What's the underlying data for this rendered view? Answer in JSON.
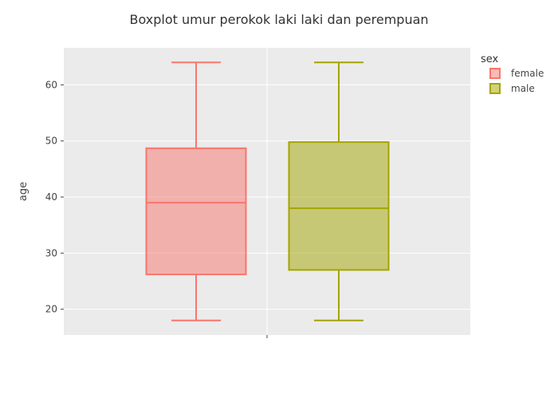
{
  "chart_data": {
    "type": "box",
    "title": "Boxplot umur perokok laki laki dan perempuan",
    "xlabel": "",
    "ylabel": "age",
    "ylim": [
      15.4,
      66.6
    ],
    "yticks": [
      20,
      30,
      40,
      50,
      60
    ],
    "grid": true,
    "legend": {
      "title": "sex",
      "placement": "top-right"
    },
    "series": [
      {
        "name": "female",
        "min": 18,
        "q1": 26.2,
        "median": 39,
        "q3": 48.7,
        "max": 64,
        "stroke": "#F8766D",
        "fill": "#F8766D"
      },
      {
        "name": "male",
        "min": 18,
        "q1": 27,
        "median": 38,
        "q3": 49.8,
        "max": 64,
        "stroke": "#A3A500",
        "fill": "#A3A500"
      }
    ],
    "colors": {
      "plot_bg": "#EBEBEB",
      "grid": "#FFFFFF",
      "text": "#444444",
      "title": "#333333"
    }
  }
}
